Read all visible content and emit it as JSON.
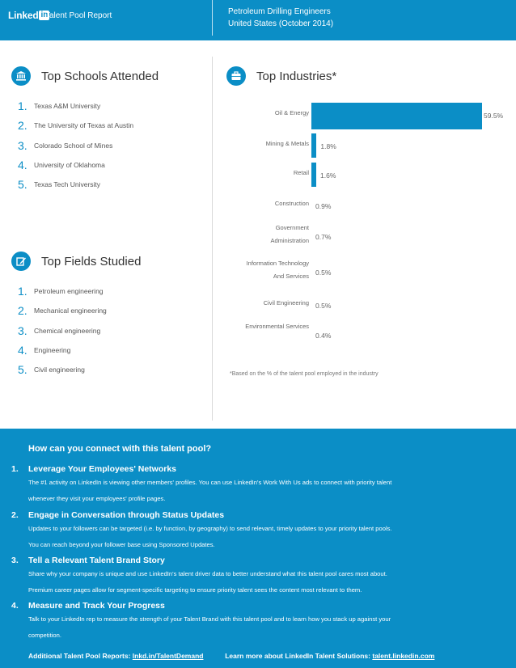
{
  "header": {
    "logo_text": "Linked",
    "logo_in": "in",
    "report_title": "Talent Pool Report",
    "pool_name": "Petroleum Drilling Engineers",
    "pool_location": "United States (October 2014)"
  },
  "schools": {
    "title": "Top Schools Attended",
    "icon": "school-icon",
    "items": [
      {
        "num": "1.",
        "label": "Texas A&M University"
      },
      {
        "num": "2.",
        "label": "The University of Texas at Austin"
      },
      {
        "num": "3.",
        "label": "Colorado School of Mines"
      },
      {
        "num": "4.",
        "label": "University of Oklahoma"
      },
      {
        "num": "5.",
        "label": "Texas Tech University"
      }
    ]
  },
  "fields": {
    "title": "Top Fields Studied",
    "icon": "pencil-icon",
    "items": [
      {
        "num": "1.",
        "label": "Petroleum engineering"
      },
      {
        "num": "2.",
        "label": "Mechanical engineering"
      },
      {
        "num": "3.",
        "label": "Chemical engineering"
      },
      {
        "num": "4.",
        "label": "Engineering"
      },
      {
        "num": "5.",
        "label": "Civil engineering"
      }
    ]
  },
  "industries": {
    "title": "Top Industries*",
    "icon": "briefcase-icon",
    "footnote": "*Based on the % of the talent pool employed in the industry"
  },
  "chart_data": {
    "type": "bar",
    "orientation": "horizontal",
    "categories": [
      "Oil & Energy",
      "Mining & Metals",
      "Retail",
      "Construction",
      "Government Administration",
      "Information Technology And Services",
      "Civil Engineering",
      "Environmental Services"
    ],
    "values": [
      59.5,
      1.8,
      1.6,
      0.9,
      0.7,
      0.5,
      0.5,
      0.4
    ],
    "value_labels": [
      "59.5%",
      "1.8%",
      "1.6%",
      "0.9%",
      "0.7%",
      "0.5%",
      "0.5%",
      "0.4%"
    ],
    "unit": "%",
    "title": "Top Industries*",
    "xlabel": "",
    "ylabel": "",
    "grid": false,
    "legend": "none",
    "color": "#0b8ec6"
  },
  "connect": {
    "title": "How can you connect with this talent pool?",
    "tips": [
      {
        "num": "1.",
        "heading": "Leverage Your Employees' Networks",
        "lines": [
          "The #1 activity on LinkedIn is viewing other members' profiles. You can use LinkedIn's Work With Us ads to connect with priority talent",
          "whenever they visit your employees' profile pages."
        ]
      },
      {
        "num": "2.",
        "heading": "Engage in Conversation through Status Updates",
        "lines": [
          "Updates to your followers can be targeted (i.e. by function, by geography) to send relevant, timely updates to your priority talent pools.",
          "You can reach beyond your follower base using Sponsored Updates."
        ]
      },
      {
        "num": "3.",
        "heading": "Tell a Relevant Talent Brand Story",
        "lines": [
          "Share why your company is unique and use LinkedIn's talent driver data to better understand what this talent pool cares most about.",
          "Premium career pages allow for segment-specific targeting to ensure priority talent sees the content most relevant to them."
        ]
      },
      {
        "num": "4.",
        "heading": "Measure and Track Your Progress",
        "lines": [
          "Talk to your LinkedIn rep to measure the strength of your Talent Brand with this talent pool and to learn how you stack up against your",
          "competition."
        ]
      }
    ],
    "footer": {
      "reports_label": "Additional Talent Pool Reports:",
      "reports_link": "lnkd.in/TalentDemand",
      "solutions_label": "Learn more about LinkedIn Talent Solutions:",
      "solutions_link": "talent.linkedin.com"
    }
  },
  "colors": {
    "brand": "#0b8ec6",
    "text": "#555555"
  }
}
